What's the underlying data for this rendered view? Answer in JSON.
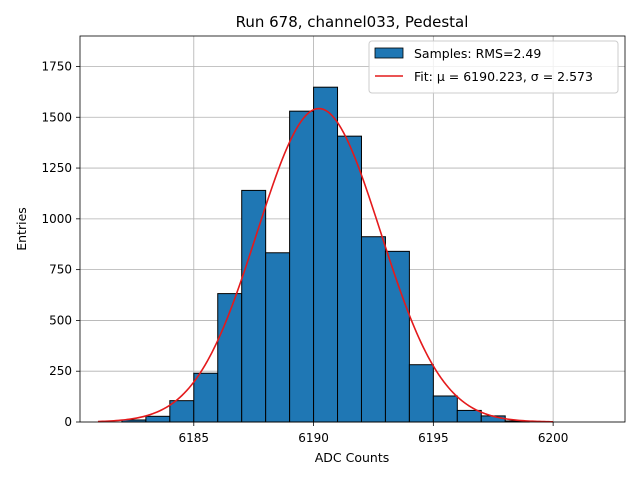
{
  "chart_data": {
    "type": "bar",
    "title": "Run 678, channel033, Pedestal",
    "xlabel": "ADC Counts",
    "ylabel": "Entries",
    "xlim": [
      6180.25,
      6203.0
    ],
    "ylim": [
      0,
      1900
    ],
    "xticks": [
      6185,
      6190,
      6195,
      6200
    ],
    "yticks": [
      0,
      250,
      500,
      750,
      1000,
      1250,
      1500,
      1750
    ],
    "grid": true,
    "legend_position": "top-right",
    "bin_width": 1,
    "bins": [
      {
        "x0": 6182,
        "x1": 6183,
        "value": 10
      },
      {
        "x0": 6183,
        "x1": 6184,
        "value": 28
      },
      {
        "x0": 6184,
        "x1": 6185,
        "value": 105
      },
      {
        "x0": 6185,
        "x1": 6186,
        "value": 240
      },
      {
        "x0": 6186,
        "x1": 6187,
        "value": 632
      },
      {
        "x0": 6187,
        "x1": 6188,
        "value": 1140
      },
      {
        "x0": 6188,
        "x1": 6189,
        "value": 833
      },
      {
        "x0": 6189,
        "x1": 6190,
        "value": 1530
      },
      {
        "x0": 6190,
        "x1": 6191,
        "value": 1648
      },
      {
        "x0": 6191,
        "x1": 6192,
        "value": 1407
      },
      {
        "x0": 6192,
        "x1": 6193,
        "value": 912
      },
      {
        "x0": 6193,
        "x1": 6194,
        "value": 840
      },
      {
        "x0": 6194,
        "x1": 6195,
        "value": 282
      },
      {
        "x0": 6195,
        "x1": 6196,
        "value": 128
      },
      {
        "x0": 6196,
        "x1": 6197,
        "value": 57
      },
      {
        "x0": 6197,
        "x1": 6198,
        "value": 30
      },
      {
        "x0": 6198,
        "x1": 6199,
        "value": 5
      }
    ],
    "fit": {
      "mu": 6190.223,
      "sigma": 2.573,
      "amplitude": 1543,
      "x_range": [
        6181,
        6200
      ]
    },
    "series": [
      {
        "name": "Samples: RMS=2.49",
        "kind": "histogram",
        "color": "#1f77b4"
      },
      {
        "name": "Fit: μ = 6190.223, σ = 2.573",
        "kind": "line",
        "color": "#e41a1c"
      }
    ]
  }
}
